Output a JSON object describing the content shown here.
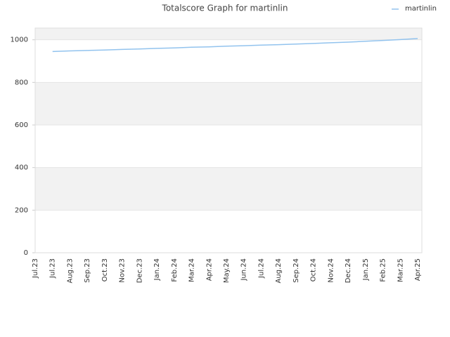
{
  "chart_data": {
    "type": "line",
    "title": "Totalscore Graph for martinlin",
    "categories": [
      "Jul.23",
      "Jul.23",
      "Aug.23",
      "Sep.23",
      "Oct.23",
      "Nov.23",
      "Dec.23",
      "Jan.24",
      "Feb.24",
      "Mar.24",
      "Apr.24",
      "May.24",
      "Jun.24",
      "Jul.24",
      "Aug.24",
      "Sep.24",
      "Oct.24",
      "Nov.24",
      "Dec.24",
      "Jan.25",
      "Feb.25",
      "Mar.25",
      "Apr.25"
    ],
    "series": [
      {
        "name": "martinlin",
        "color": "#92c3ee",
        "values": [
          null,
          945,
          948,
          950,
          952,
          955,
          957,
          960,
          962,
          965,
          967,
          970,
          972,
          975,
          977,
          980,
          983,
          986,
          989,
          993,
          997,
          1001,
          1006
        ]
      }
    ],
    "ylim": [
      0,
      1055
    ],
    "yticks": [
      0,
      200,
      400,
      600,
      800,
      1000
    ],
    "grid": true,
    "legend": "top-right"
  }
}
